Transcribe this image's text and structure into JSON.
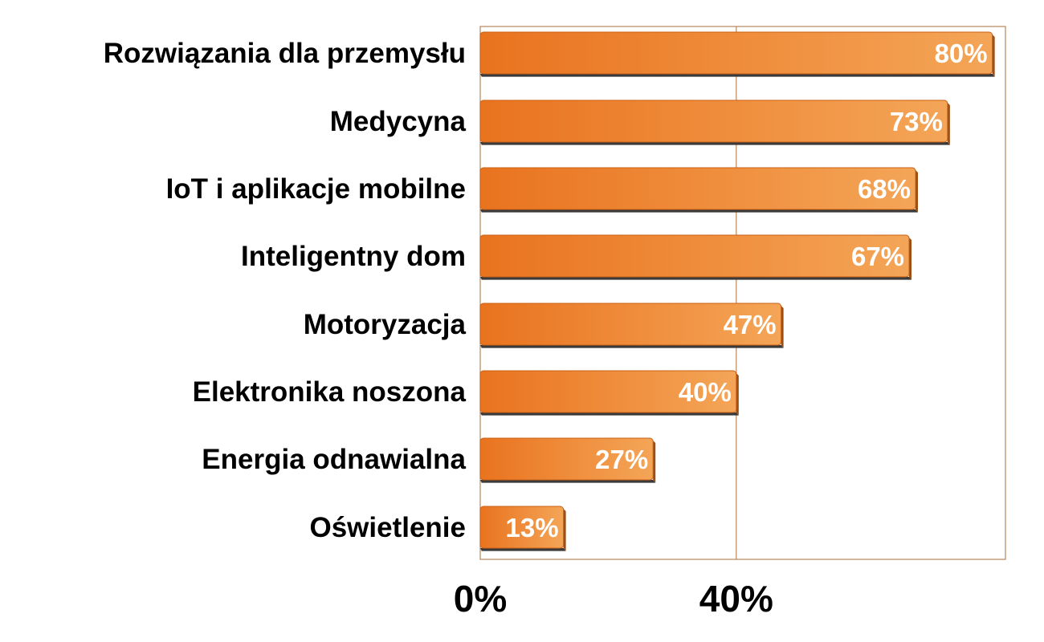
{
  "chart_data": {
    "type": "bar",
    "orientation": "horizontal",
    "categories": [
      "Rozwiązania dla przemysłu",
      "Medycyna",
      "IoT i aplikacje mobilne",
      "Inteligentny dom",
      "Motoryzacja",
      "Elektronika noszona",
      "Energia odnawialna",
      "Oświetlenie"
    ],
    "values": [
      80,
      73,
      68,
      67,
      47,
      40,
      27,
      13
    ],
    "data_labels": [
      "80%",
      "73%",
      "68%",
      "67%",
      "47%",
      "40%",
      "27%",
      "13%"
    ],
    "x_ticks": [
      "0%",
      "40%"
    ],
    "xlim": [
      0,
      80
    ],
    "grid": true,
    "legend": "none",
    "colors": {
      "bar_dark": "#e9731f",
      "bar_light": "#f4a557",
      "bar_shadow": "#3a3a3a",
      "frame": "#b8865a"
    }
  }
}
